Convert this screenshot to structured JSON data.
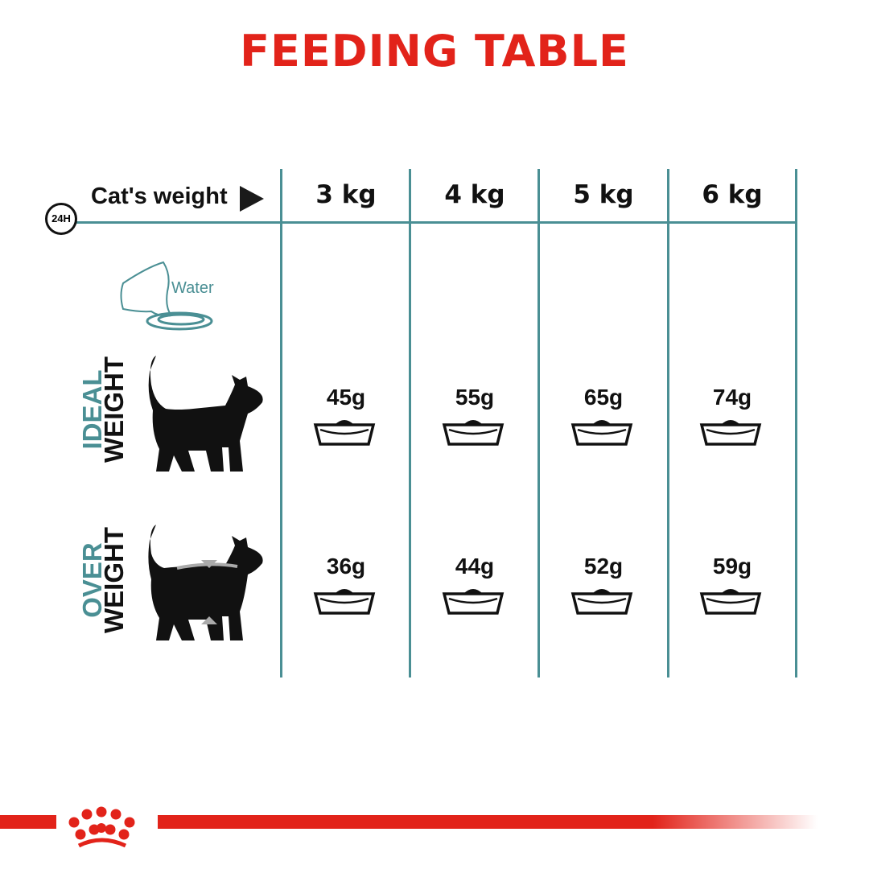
{
  "title": "FEEDING TABLE",
  "header": {
    "clock_label": "24H",
    "row_header": "Cat's weight",
    "columns": [
      "3 kg",
      "4 kg",
      "5 kg",
      "6 kg"
    ]
  },
  "water_label": "Water",
  "rows": [
    {
      "label_top": "IDEAL",
      "label_bottom": "WEIGHT",
      "values": [
        "45g",
        "55g",
        "65g",
        "74g"
      ]
    },
    {
      "label_top": "OVER",
      "label_bottom": "WEIGHT",
      "values": [
        "36g",
        "44g",
        "52g",
        "59g"
      ]
    }
  ],
  "colors": {
    "accent": "#e2231a",
    "teal": "#4a8f94",
    "text": "#111111"
  },
  "icons": [
    "clock-24h-icon",
    "arrow-right-icon",
    "water-bowl-icon",
    "cat-silhouette-icon",
    "food-bowl-icon",
    "royal-canin-crown-logo"
  ]
}
